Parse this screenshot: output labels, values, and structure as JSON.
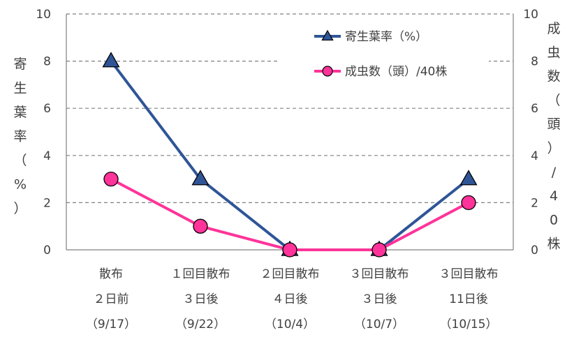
{
  "chart_data": {
    "type": "line",
    "categories": [
      [
        "散布",
        "２日前",
        "（9/17）"
      ],
      [
        "１回目散布",
        "３日後",
        "（9/22）"
      ],
      [
        "２回目散布",
        "４日後",
        "（10/4）"
      ],
      [
        "３回目散布",
        "３日後",
        "（10/7）"
      ],
      [
        "３回目散布",
        "11日後",
        "（10/15）"
      ]
    ],
    "series": [
      {
        "name": "寄生葉率（%）",
        "axis": "left",
        "values": [
          8,
          3,
          0,
          0,
          3
        ],
        "color": "#2F5597",
        "marker": "triangle"
      },
      {
        "name": "成虫数（頭）/40株",
        "axis": "right",
        "values": [
          3,
          1,
          0,
          0,
          2
        ],
        "color": "#FF3399",
        "marker": "circle"
      }
    ],
    "y_left": {
      "label": [
        "寄",
        "生",
        "葉",
        "率",
        "（",
        "%",
        "）"
      ],
      "range": [
        0,
        10
      ],
      "ticks": [
        0,
        2,
        4,
        6,
        8,
        10
      ]
    },
    "y_right": {
      "label": [
        "成",
        "虫",
        "数",
        "（",
        "頭",
        "）",
        "/",
        "4",
        "0",
        "株"
      ],
      "range": [
        0,
        10
      ],
      "ticks": [
        0,
        2,
        4,
        6,
        8,
        10
      ]
    },
    "grid": true,
    "legend_position": "top-right"
  }
}
